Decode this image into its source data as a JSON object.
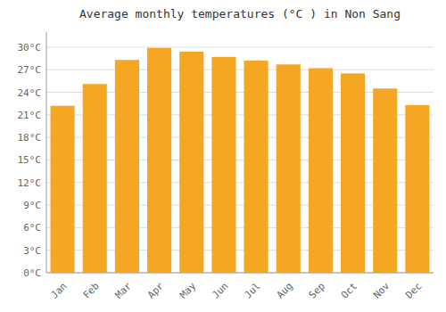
{
  "chart_data": {
    "type": "bar",
    "title": "Average monthly temperatures (°C ) in Non Sang",
    "categories": [
      "Jan",
      "Feb",
      "Mar",
      "Apr",
      "May",
      "Jun",
      "Jul",
      "Aug",
      "Sep",
      "Oct",
      "Nov",
      "Dec"
    ],
    "values": [
      22.2,
      25.1,
      28.3,
      29.9,
      29.4,
      28.7,
      28.2,
      27.7,
      27.2,
      26.5,
      24.5,
      22.3
    ],
    "color": "#F5A623",
    "ylim": [
      0,
      32
    ],
    "yticks": [
      {
        "value": 0,
        "label": "0°C"
      },
      {
        "value": 3,
        "label": "3°C"
      },
      {
        "value": 6,
        "label": "6°C"
      },
      {
        "value": 9,
        "label": "9°C"
      },
      {
        "value": 12,
        "label": "12°C"
      },
      {
        "value": 15,
        "label": "15°C"
      },
      {
        "value": 18,
        "label": "18°C"
      },
      {
        "value": 21,
        "label": "21°C"
      },
      {
        "value": 24,
        "label": "24°C"
      },
      {
        "value": 27,
        "label": "27°C"
      },
      {
        "value": 30,
        "label": "30°C"
      }
    ],
    "grid": true
  }
}
